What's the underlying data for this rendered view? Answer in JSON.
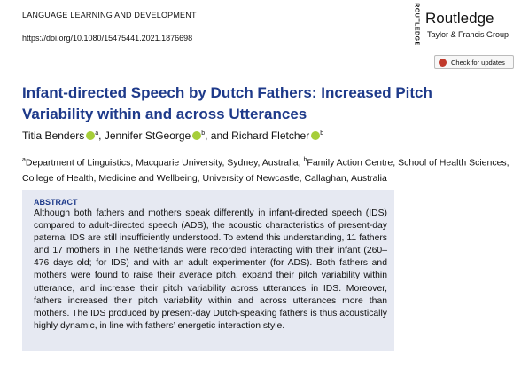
{
  "header": {
    "journal": "LANGUAGE LEARNING AND DEVELOPMENT",
    "doi": "https://doi.org/10.1080/15475441.2021.1876698"
  },
  "publisher": {
    "logo_text": "ROUTLEDGE",
    "name": "Routledge",
    "group": "Taylor & Francis Group"
  },
  "check_updates": "Check for updates",
  "title": "Infant-directed Speech by Dutch Fathers: Increased Pitch Variability within and across Utterances",
  "authors": [
    {
      "name": "Titia Benders",
      "affil": "a"
    },
    {
      "name": "Jennifer StGeorge",
      "affil": "b"
    },
    {
      "name": "Richard Fletcher",
      "affil": "b"
    }
  ],
  "author_separators": [
    ", ",
    ", and "
  ],
  "affiliations": [
    {
      "mark": "a",
      "text": "Department of Linguistics, Macquarie University, Sydney, Australia;"
    },
    {
      "mark": "b",
      "text": "Family Action Centre, School of Health Sciences, College of Health, Medicine and Wellbeing, University of Newcastle, Callaghan, Australia"
    }
  ],
  "abstract": {
    "heading": "ABSTRACT",
    "text": "Although both fathers and mothers speak differently in infant-directed speech (IDS) compared to adult-directed speech (ADS), the acoustic characteristics of present-day paternal IDS are still insufficiently understood. To extend this understanding, 11 fathers and 17 mothers in The Netherlands were recorded interacting with their infant (260–476 days old; for IDS) and with an adult experimenter (for ADS). Both fathers and mothers were found to raise their average pitch, expand their pitch variability within utterance, and increase their pitch variability across utterances in IDS. Moreover, fathers increased their pitch variability within and across utterances more than mothers. The IDS produced by present-day Dutch-speaking fathers is thus acoustically highly dynamic, in line with fathers’ energetic interaction style."
  }
}
